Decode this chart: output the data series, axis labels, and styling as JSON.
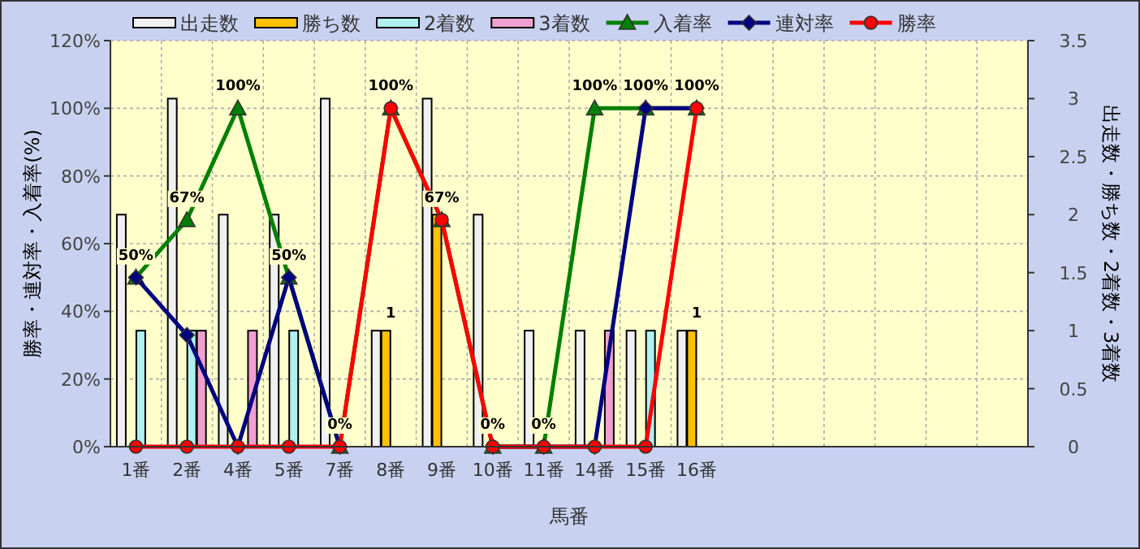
{
  "chart_data": {
    "type": "bar",
    "xlabel": "馬番",
    "ylabel": "勝率・連対率・入着率(%)",
    "y2label": "出走数・勝ち数・2着数・3着数",
    "categories": [
      "1番",
      "2番",
      "4番",
      "5番",
      "7番",
      "8番",
      "9番",
      "10番",
      "11番",
      "14番",
      "15番",
      "16番",
      null,
      null,
      null,
      null,
      null,
      null
    ],
    "series": [
      {
        "name": "出走数",
        "axis": "y2",
        "color": "#f0f0f0",
        "values": [
          2,
          3,
          2,
          2,
          3,
          1,
          3,
          2,
          1,
          1,
          1,
          1,
          null,
          null,
          null,
          null,
          null,
          null
        ]
      },
      {
        "name": "勝ち数",
        "axis": "y2",
        "color": "#ffc000",
        "values": [
          0,
          0,
          0,
          0,
          0,
          1,
          2,
          0,
          0,
          0,
          0,
          1,
          null,
          null,
          null,
          null,
          null,
          null
        ],
        "value_labels": [
          null,
          null,
          null,
          null,
          null,
          "1",
          null,
          null,
          null,
          null,
          null,
          "1",
          null,
          null,
          null,
          null,
          null,
          null
        ]
      },
      {
        "name": "2着数",
        "axis": "y2",
        "color": "#b0f0f0",
        "values": [
          1,
          1,
          0,
          1,
          0,
          0,
          0,
          0,
          0,
          0,
          1,
          0,
          null,
          null,
          null,
          null,
          null,
          null
        ]
      },
      {
        "name": "3着数",
        "axis": "y2",
        "color": "#f0a0d0",
        "values": [
          0,
          1,
          1,
          0,
          0,
          0,
          0,
          0,
          0,
          1,
          0,
          0,
          null,
          null,
          null,
          null,
          null,
          null
        ]
      },
      {
        "name": "入着率",
        "type": "line",
        "marker": "triangle",
        "color": "#008000",
        "values": [
          50,
          67,
          100,
          50,
          0,
          100,
          67,
          0,
          0,
          100,
          100,
          100,
          null,
          null,
          null,
          null,
          null,
          null
        ],
        "value_labels": [
          "50%",
          "67%",
          "100%",
          "50%",
          "0%",
          "100%",
          "67%",
          "0%",
          "0%",
          "100%",
          "100%",
          "100%",
          null,
          null,
          null,
          null,
          null,
          null
        ]
      },
      {
        "name": "連対率",
        "type": "line",
        "marker": "diamond",
        "color": "#000080",
        "values": [
          50,
          33,
          0,
          50,
          0,
          null,
          null,
          0,
          0,
          0,
          100,
          100,
          null,
          null,
          null,
          null,
          null,
          null
        ]
      },
      {
        "name": "勝率",
        "type": "line",
        "marker": "circle",
        "color": "#ff0000",
        "values": [
          0,
          0,
          0,
          0,
          0,
          100,
          67,
          0,
          0,
          0,
          0,
          100,
          null,
          null,
          null,
          null,
          null,
          null
        ]
      }
    ],
    "ylim": [
      0,
      120
    ],
    "yticks": [
      {
        "value": 0,
        "label": "0%"
      },
      {
        "value": 20,
        "label": "20%"
      },
      {
        "value": 40,
        "label": "40%"
      },
      {
        "value": 60,
        "label": "60%"
      },
      {
        "value": 80,
        "label": "80%"
      },
      {
        "value": 100,
        "label": "100%"
      },
      {
        "value": 120,
        "label": "120%"
      }
    ],
    "y2lim": [
      0,
      3.5
    ],
    "y2ticks": [
      0,
      0.5,
      1,
      1.5,
      2,
      2.5,
      3,
      3.5
    ],
    "grid": true,
    "legend": "top"
  }
}
